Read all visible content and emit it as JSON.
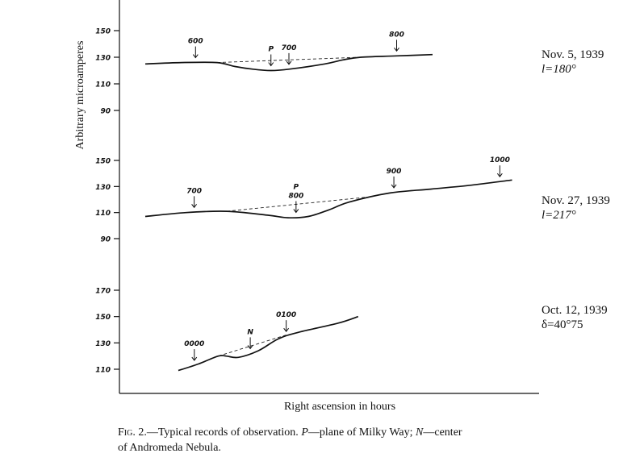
{
  "chart_data": {
    "type": "line",
    "ylabel": "Arbitrary microamperes",
    "xlabel": "Right ascension in hours",
    "panels": [
      {
        "date": "Nov. 5, 1939",
        "coord": "l=180°",
        "yticks": [
          150,
          130,
          110,
          90
        ],
        "ylim": [
          85,
          160
        ],
        "trace": [
          [
            0,
            125
          ],
          [
            1,
            126
          ],
          [
            2,
            126
          ],
          [
            2.5,
            123
          ],
          [
            3,
            121
          ],
          [
            3.5,
            120
          ],
          [
            4,
            121
          ],
          [
            5,
            125
          ],
          [
            5.5,
            128
          ],
          [
            6,
            130
          ],
          [
            7,
            131
          ],
          [
            8,
            132
          ]
        ],
        "dashed": [
          [
            2,
            126
          ],
          [
            6,
            130
          ]
        ],
        "time_marks": [
          {
            "label": "600",
            "x": 1.4
          },
          {
            "label": "P",
            "x": 3.5
          },
          {
            "label": "700",
            "x": 4.0
          },
          {
            "label": "800",
            "x": 7.0
          }
        ]
      },
      {
        "date": "Nov. 27, 1939",
        "coord": "l=217°",
        "yticks": [
          150,
          130,
          110,
          90
        ],
        "ylim": [
          85,
          160
        ],
        "trace": [
          [
            0,
            107
          ],
          [
            1,
            110
          ],
          [
            2,
            111
          ],
          [
            3,
            108
          ],
          [
            3.5,
            106
          ],
          [
            4,
            107
          ],
          [
            4.5,
            112
          ],
          [
            5,
            118
          ],
          [
            6,
            125
          ],
          [
            7,
            128
          ],
          [
            8,
            131
          ],
          [
            9,
            135
          ]
        ],
        "dashed": [
          [
            2,
            111
          ],
          [
            5.5,
            122
          ]
        ],
        "time_marks": [
          {
            "label": "700",
            "x": 1.2
          },
          {
            "label": "P",
            "x": 3.7
          },
          {
            "label": "800",
            "x": 3.7
          },
          {
            "label": "900",
            "x": 6.1
          },
          {
            "label": "1000",
            "x": 8.7
          }
        ]
      },
      {
        "date": "Oct. 12, 1939",
        "coord": "δ=40°75",
        "yticks": [
          170,
          150,
          130,
          110
        ],
        "ylim": [
          100,
          180
        ],
        "trace": [
          [
            0,
            109
          ],
          [
            0.5,
            114
          ],
          [
            1,
            120
          ],
          [
            1.2,
            120
          ],
          [
            1.5,
            119
          ],
          [
            2,
            124
          ],
          [
            2.5,
            133
          ],
          [
            3,
            138
          ],
          [
            4,
            145
          ],
          [
            4.5,
            150
          ]
        ],
        "dashed": [
          [
            1,
            120
          ],
          [
            2.7,
            136
          ]
        ],
        "time_marks": [
          {
            "label": "0000",
            "x": 0.4
          },
          {
            "label": "N",
            "x": 1.8
          },
          {
            "label": "0100",
            "x": 2.7
          }
        ]
      }
    ]
  },
  "caption": {
    "fig": "Fig. 2.",
    "line1a": "—Typical records of observation. ",
    "p": "P",
    "line1b": "—plane of Milky Way; ",
    "n": "N",
    "line1c": "—center",
    "line2": "of Andromeda Nebula."
  }
}
